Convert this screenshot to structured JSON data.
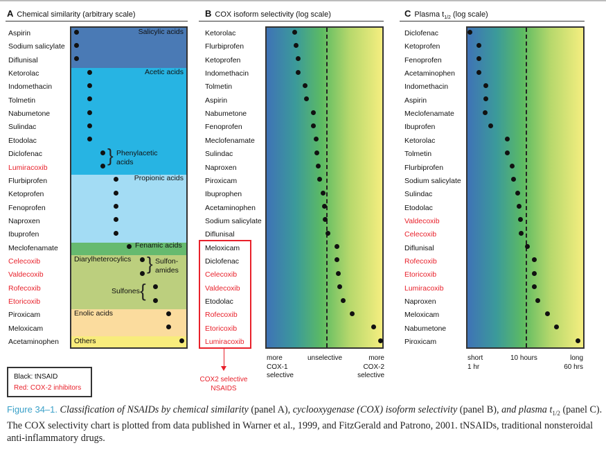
{
  "panel_a": {
    "letter": "A",
    "title": "Chemical similarity (arbitrary scale)",
    "groups": [
      {
        "label": "Salicylic acids",
        "color": "#4a7ab5"
      },
      {
        "label": "Acetic acids",
        "color": "#27b4e3"
      },
      {
        "label": "Phenylacetic acids",
        "color": "#27b4e3"
      },
      {
        "label": "Propionic acids",
        "color": "#a3dcf4"
      },
      {
        "label": "Fenamic acids",
        "color": "#66ba6f"
      },
      {
        "label": "Diarylheterocylics",
        "color": "#bccf7e"
      },
      {
        "label": "Sulfon-amides",
        "color": "#bccf7e"
      },
      {
        "label": "Sulfones",
        "color": "#bccf7e"
      },
      {
        "label": "Enolic acids",
        "color": "#fbdc9e"
      },
      {
        "label": "Others",
        "color": "#f8ec7c"
      }
    ],
    "drugs": [
      {
        "name": "Aspirin",
        "red": false,
        "group": 0
      },
      {
        "name": "Sodium salicylate",
        "red": false,
        "group": 0
      },
      {
        "name": "Diflunisal",
        "red": false,
        "group": 0
      },
      {
        "name": "Ketorolac",
        "red": false,
        "group": 1
      },
      {
        "name": "Indomethacin",
        "red": false,
        "group": 1
      },
      {
        "name": "Tolmetin",
        "red": false,
        "group": 1
      },
      {
        "name": "Nabumetone",
        "red": false,
        "group": 1
      },
      {
        "name": "Sulindac",
        "red": false,
        "group": 1
      },
      {
        "name": "Etodolac",
        "red": false,
        "group": 1
      },
      {
        "name": "Diclofenac",
        "red": false,
        "group": 2
      },
      {
        "name": "Lumiracoxib",
        "red": true,
        "group": 2
      },
      {
        "name": "Flurbiprofen",
        "red": false,
        "group": 3
      },
      {
        "name": "Ketoprofen",
        "red": false,
        "group": 3
      },
      {
        "name": "Fenoprofen",
        "red": false,
        "group": 3
      },
      {
        "name": "Naproxen",
        "red": false,
        "group": 3
      },
      {
        "name": "Ibuprofen",
        "red": false,
        "group": 3
      },
      {
        "name": "Meclofenamate",
        "red": false,
        "group": 4
      },
      {
        "name": "Celecoxib",
        "red": true,
        "group": 6
      },
      {
        "name": "Valdecoxib",
        "red": true,
        "group": 6
      },
      {
        "name": "Rofecoxib",
        "red": true,
        "group": 7
      },
      {
        "name": "Etoricoxib",
        "red": true,
        "group": 7
      },
      {
        "name": "Piroxicam",
        "red": false,
        "group": 8
      },
      {
        "name": "Meloxicam",
        "red": false,
        "group": 8
      },
      {
        "name": "Acetaminophen",
        "red": false,
        "group": 9
      }
    ]
  },
  "panel_b": {
    "letter": "B",
    "title": "COX isoform selectivity (log scale)",
    "scale": "log",
    "axis_left": "more COX-1 selective",
    "axis_mid": "unselective",
    "axis_right": "more COX-2 selective",
    "unselective_position": 0.51,
    "drugs": [
      {
        "name": "Ketorolac",
        "red": false,
        "position": 0.25
      },
      {
        "name": "Flurbiprofen",
        "red": false,
        "position": 0.26
      },
      {
        "name": "Ketoprofen",
        "red": false,
        "position": 0.28
      },
      {
        "name": "Indomethacin",
        "red": false,
        "position": 0.28
      },
      {
        "name": "Tolmetin",
        "red": false,
        "position": 0.34
      },
      {
        "name": "Aspirin",
        "red": false,
        "position": 0.35
      },
      {
        "name": "Nabumetone",
        "red": false,
        "position": 0.41
      },
      {
        "name": "Fenoprofen",
        "red": false,
        "position": 0.41
      },
      {
        "name": "Meclofenamate",
        "red": false,
        "position": 0.43
      },
      {
        "name": "Sulindac",
        "red": false,
        "position": 0.44
      },
      {
        "name": "Naproxen",
        "red": false,
        "position": 0.45
      },
      {
        "name": "Piroxicam",
        "red": false,
        "position": 0.46
      },
      {
        "name": "Ibuprophen",
        "red": false,
        "position": 0.49
      },
      {
        "name": "Acetaminophen",
        "red": false,
        "position": 0.5
      },
      {
        "name": "Sodium salicylate",
        "red": false,
        "position": 0.51
      },
      {
        "name": "Diflunisal",
        "red": false,
        "position": 0.53
      },
      {
        "name": "Meloxicam",
        "red": false,
        "position": 0.61
      },
      {
        "name": "Diclofenac",
        "red": false,
        "position": 0.61
      },
      {
        "name": "Celecoxib",
        "red": true,
        "position": 0.62
      },
      {
        "name": "Valdecoxib",
        "red": true,
        "position": 0.63
      },
      {
        "name": "Etodolac",
        "red": false,
        "position": 0.66
      },
      {
        "name": "Rofecoxib",
        "red": true,
        "position": 0.74
      },
      {
        "name": "Etoricoxib",
        "red": true,
        "position": 0.92
      },
      {
        "name": "Lumiracoxib",
        "red": true,
        "position": 0.98
      }
    ],
    "cox2_annotation": "COX2 selective NSAIDS"
  },
  "panel_c": {
    "letter": "C",
    "title": "Plasma t",
    "title_sub": "1/2",
    "title_suffix": " (log scale)",
    "scale": "log",
    "axis_left": [
      "short",
      "1 hr"
    ],
    "axis_mid": "10 hours",
    "axis_right": [
      "long",
      "60 hrs"
    ],
    "mid_position": 0.5,
    "drugs": [
      {
        "name": "Diclofenac",
        "red": false,
        "position": 0.03
      },
      {
        "name": "Ketoprofen",
        "red": false,
        "position": 0.11
      },
      {
        "name": "Fenoprofen",
        "red": false,
        "position": 0.11
      },
      {
        "name": "Acetaminophen",
        "red": false,
        "position": 0.11
      },
      {
        "name": "Indomethacin",
        "red": false,
        "position": 0.17
      },
      {
        "name": "Aspirin",
        "red": false,
        "position": 0.17
      },
      {
        "name": "Meclofenamate",
        "red": false,
        "position": 0.16
      },
      {
        "name": "Ibuprofen",
        "red": false,
        "position": 0.21
      },
      {
        "name": "Ketorolac",
        "red": false,
        "position": 0.35
      },
      {
        "name": "Tolmetin",
        "red": false,
        "position": 0.35
      },
      {
        "name": "Flurbiprofen",
        "red": false,
        "position": 0.39
      },
      {
        "name": "Sodium salicylate",
        "red": false,
        "position": 0.4
      },
      {
        "name": "Sulindac",
        "red": false,
        "position": 0.44
      },
      {
        "name": "Etodolac",
        "red": false,
        "position": 0.45
      },
      {
        "name": "Valdecoxib",
        "red": true,
        "position": 0.46
      },
      {
        "name": "Celecoxib",
        "red": true,
        "position": 0.47
      },
      {
        "name": "Diflunisal",
        "red": false,
        "position": 0.52
      },
      {
        "name": "Rofecoxib",
        "red": true,
        "position": 0.58
      },
      {
        "name": "Etoricoxib",
        "red": true,
        "position": 0.58
      },
      {
        "name": "Lumiracoxib",
        "red": true,
        "position": 0.58
      },
      {
        "name": "Naproxen",
        "red": false,
        "position": 0.61
      },
      {
        "name": "Meloxicam",
        "red": false,
        "position": 0.69
      },
      {
        "name": "Nabumetone",
        "red": false,
        "position": 0.77
      },
      {
        "name": "Piroxicam",
        "red": false,
        "position": 0.95
      }
    ]
  },
  "legend": {
    "black": "Black: tNSAID",
    "red": "Red: COX-2 inhibitors"
  },
  "colors": {
    "red": "#e8202a",
    "figure_label": "#3aa0c8"
  },
  "caption": {
    "label": "Figure 34–1.",
    "part1": "Classification of NSAIDs by chemical similarity",
    "part2": " (panel A), ",
    "part3": "cyclooxygenase (COX) isoform selectivity",
    "part4": " (panel B), ",
    "part5": "and plasma t",
    "part5_sub": "1/2",
    "part6": " (panel C). The COX selectivity chart is plotted from data published in Warner et al., 1999, and FitzGerald and Patrono, 2001. tNSAIDs, traditional nonsteroidal anti-inflammatory drugs."
  }
}
